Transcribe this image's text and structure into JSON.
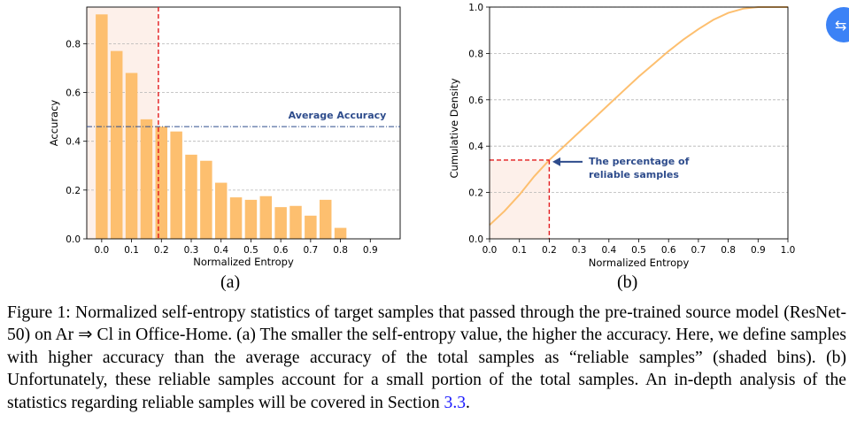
{
  "chart_data": [
    {
      "type": "bar",
      "panel_label": "(a)",
      "xlabel": "Normalized Entropy",
      "ylabel": "Accuracy",
      "xticks": [
        "0.0",
        "0.1",
        "0.2",
        "0.3",
        "0.4",
        "0.5",
        "0.6",
        "0.7",
        "0.8",
        "0.9"
      ],
      "yticks": [
        "0.0",
        "0.2",
        "0.4",
        "0.6",
        "0.8"
      ],
      "xlim": [
        -0.05,
        1.0
      ],
      "ylim": [
        0,
        0.95
      ],
      "bar_width": 0.04,
      "bins": [
        0.0,
        0.05,
        0.1,
        0.15,
        0.2,
        0.25,
        0.3,
        0.35,
        0.4,
        0.45,
        0.5,
        0.55,
        0.6,
        0.65,
        0.7,
        0.75,
        0.8
      ],
      "values": [
        0.92,
        0.77,
        0.68,
        0.49,
        0.46,
        0.44,
        0.345,
        0.32,
        0.23,
        0.17,
        0.16,
        0.175,
        0.13,
        0.135,
        0.095,
        0.16,
        0.045
      ],
      "average_accuracy": 0.46,
      "average_label": "Average Accuracy",
      "threshold_x": 0.19,
      "bar_color": "#fdbf6f"
    },
    {
      "type": "line",
      "panel_label": "(b)",
      "xlabel": "Normalized Entropy",
      "ylabel": "Cumulative Density",
      "xticks": [
        "0.0",
        "0.1",
        "0.2",
        "0.3",
        "0.4",
        "0.5",
        "0.6",
        "0.7",
        "0.8",
        "0.9",
        "1.0"
      ],
      "yticks": [
        "0.0",
        "0.2",
        "0.4",
        "0.6",
        "0.8",
        "1.0"
      ],
      "xlim": [
        0.0,
        1.0
      ],
      "ylim": [
        0.0,
        1.0
      ],
      "x": [
        0.0,
        0.05,
        0.1,
        0.15,
        0.2,
        0.25,
        0.3,
        0.35,
        0.4,
        0.45,
        0.5,
        0.55,
        0.6,
        0.65,
        0.7,
        0.75,
        0.8,
        0.85,
        0.9,
        0.95,
        1.0
      ],
      "y": [
        0.06,
        0.12,
        0.19,
        0.27,
        0.34,
        0.4,
        0.46,
        0.52,
        0.58,
        0.64,
        0.7,
        0.755,
        0.81,
        0.86,
        0.905,
        0.945,
        0.975,
        0.993,
        1.0,
        1.0,
        1.0
      ],
      "marker_x": 0.2,
      "marker_y": 0.34,
      "annotation": "The percentage of reliable samples",
      "line_color": "#fdbf6f"
    }
  ],
  "caption": {
    "parts": [
      "Figure 1: Normalized self-entropy statistics of target samples that passed through the pre-trained source model (ResNet-50) on Ar ⇒ Cl in Office-Home. (a) The smaller the self-entropy value, the higher the accuracy. Here, we define samples with higher accuracy than the average accuracy of the total samples as “reliable samples” (shaded bins). (b) Unfortunately, these reliable samples account for a small portion of the total samples. An in-depth analysis of the statistics regarding reliable samples will be covered in Section ",
      "3.3",
      "."
    ]
  },
  "icons": {
    "floating": "translate-icon"
  }
}
